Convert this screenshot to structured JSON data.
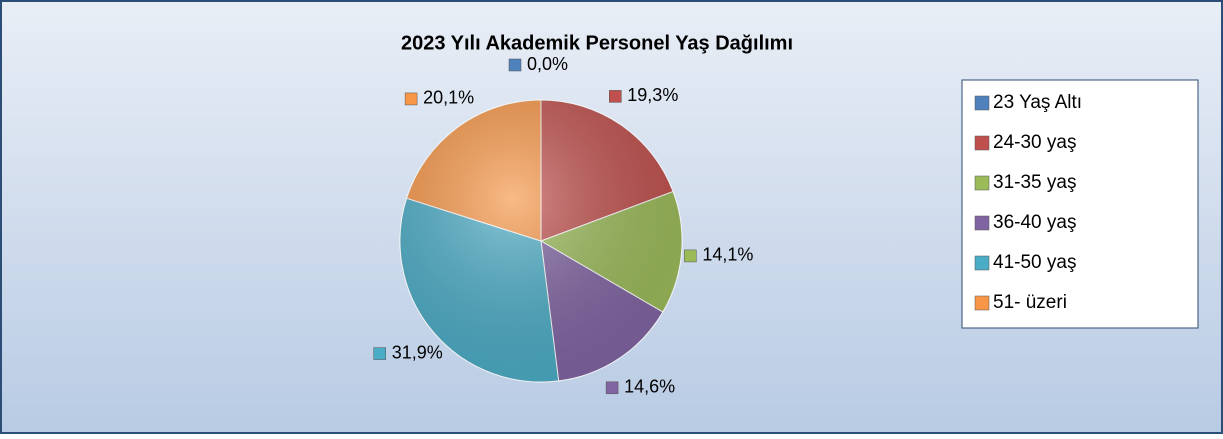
{
  "chart_data": {
    "type": "pie",
    "title": "2023 Yılı Akademik Personel Yaş Dağılımı",
    "categories": [
      "23 Yaş Altı",
      "24-30 yaş",
      "31-35 yaş",
      "36-40 yaş",
      "41-50 yaş",
      "51- üzeri"
    ],
    "values": [
      0,
      19.3,
      14.1,
      14.6,
      31.9,
      20.1
    ],
    "value_labels": [
      "0,0%",
      "19,3%",
      "14,1%",
      "14,6%",
      "31,9%",
      "20,1%"
    ],
    "colors": [
      "#4f81bd",
      "#c0504d",
      "#9bbb59",
      "#8064a2",
      "#4bacc6",
      "#f79646"
    ],
    "legend": "right"
  }
}
